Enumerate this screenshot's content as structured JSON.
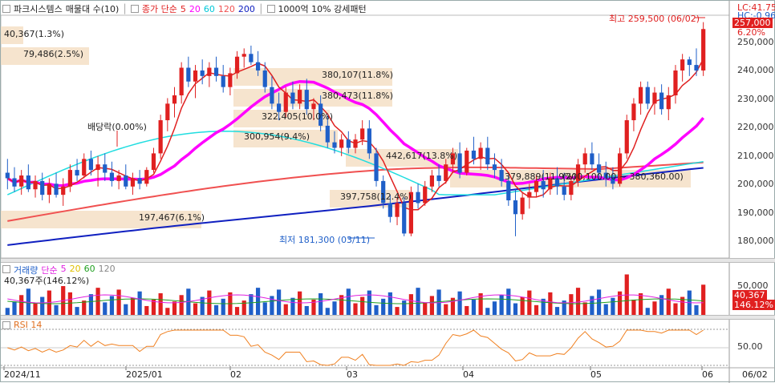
{
  "header": {
    "stock": "파크시스템스",
    "period": "매물대 수(10)",
    "ma_label": "종가 단순",
    "ma": [
      {
        "v": "5",
        "color": "#e02020"
      },
      {
        "v": "20",
        "color": "#ff00ff"
      },
      {
        "v": "60",
        "color": "#00c8d8"
      },
      {
        "v": "120",
        "color": "#f05050"
      },
      {
        "v": "200",
        "color": "#1020c0"
      }
    ],
    "pattern": "1000억 10% 강세패턴"
  },
  "price_axis": {
    "lc": "LC:41.75",
    "hc": "HC:-0.96",
    "current": "257,000",
    "change_pct": "6.20%",
    "ticks": [
      "250,000",
      "240,000",
      "230,000",
      "220,000",
      "210,000",
      "200,000",
      "190,000",
      "180,000"
    ]
  },
  "annotations": {
    "high": "최고 259,500 (06/02)",
    "low": "최저 181,300 (03/11)",
    "dividend": "배당락(0.00%)",
    "vp": [
      "40,367(1.3%)",
      "79,486(2.5%)",
      "380,107(11.8%)",
      "380,473(11.8%)",
      "322,405(10.0%)",
      "300,954(9.4%)",
      "442,617(13.8%)",
      "379,889(11.9%)",
      "(200,100.00 ~ 380,360.00)",
      "397,758(12.4%)",
      "197,467(6.1%)"
    ]
  },
  "volume": {
    "label": "거래량",
    "ma_label": "단순",
    "ma": [
      {
        "v": "5",
        "color": "#e020e0"
      },
      {
        "v": "20",
        "color": "#e0c000"
      },
      {
        "v": "60",
        "color": "#20a020"
      },
      {
        "v": "120",
        "color": "#888888"
      }
    ],
    "current": "40,367주(146.12%)",
    "axis_tick": "50,000",
    "tag_value": "40,367",
    "tag_pct": "146.12%"
  },
  "rsi": {
    "label": "RSI 14",
    "axis_tick": "50.00"
  },
  "x_axis": [
    "2024/11",
    "2025/01",
    "02",
    "03",
    "04",
    "05",
    "06",
    "06/02"
  ],
  "colors": {
    "up": "#e02020",
    "down": "#1f5fc8"
  },
  "chart_data": {
    "type": "candlestick",
    "ylim": [
      175000,
      262000
    ],
    "candles": [
      [
        205000,
        210000,
        199000,
        203000
      ],
      [
        203000,
        207000,
        198000,
        200000
      ],
      [
        200000,
        206000,
        197000,
        204000
      ],
      [
        204000,
        208000,
        198000,
        199000
      ],
      [
        199000,
        204000,
        196000,
        202000
      ],
      [
        202000,
        205000,
        195000,
        197000
      ],
      [
        197000,
        203000,
        194000,
        201000
      ],
      [
        201000,
        205000,
        196000,
        197000
      ],
      [
        197000,
        203000,
        193000,
        200000
      ],
      [
        200000,
        208000,
        198000,
        206000
      ],
      [
        206000,
        210000,
        202000,
        204000
      ],
      [
        204000,
        212000,
        203000,
        210000
      ],
      [
        210000,
        213000,
        204000,
        206000
      ],
      [
        206000,
        211000,
        200000,
        208000
      ],
      [
        208000,
        212000,
        202000,
        205000
      ],
      [
        205000,
        209000,
        200000,
        202000
      ],
      [
        202000,
        206000,
        199000,
        204000
      ],
      [
        204000,
        208000,
        199000,
        200000
      ],
      [
        200000,
        205000,
        197000,
        203000
      ],
      [
        203000,
        206000,
        199000,
        201000
      ],
      [
        201000,
        207000,
        200000,
        206000
      ],
      [
        206000,
        214000,
        205000,
        212000
      ],
      [
        212000,
        226000,
        210000,
        224000
      ],
      [
        224000,
        232000,
        220000,
        230000
      ],
      [
        230000,
        236000,
        225000,
        233000
      ],
      [
        233000,
        245000,
        230000,
        243000
      ],
      [
        243000,
        247000,
        236000,
        238000
      ],
      [
        238000,
        244000,
        232000,
        242000
      ],
      [
        242000,
        246000,
        237000,
        240000
      ],
      [
        240000,
        245000,
        236000,
        243000
      ],
      [
        243000,
        247000,
        238000,
        240000
      ],
      [
        240000,
        244000,
        234000,
        236000
      ],
      [
        236000,
        243000,
        233000,
        241000
      ],
      [
        241000,
        249000,
        239000,
        247000
      ],
      [
        247000,
        250000,
        243000,
        248000
      ],
      [
        248000,
        251000,
        244000,
        245000
      ],
      [
        245000,
        249000,
        240000,
        242000
      ],
      [
        242000,
        245000,
        234000,
        236000
      ],
      [
        236000,
        240000,
        228000,
        230000
      ],
      [
        230000,
        234000,
        224000,
        227000
      ],
      [
        227000,
        236000,
        225000,
        234000
      ],
      [
        234000,
        238000,
        228000,
        230000
      ],
      [
        230000,
        237000,
        228000,
        235000
      ],
      [
        235000,
        239000,
        226000,
        228000
      ],
      [
        228000,
        232000,
        224000,
        230000
      ],
      [
        230000,
        233000,
        220000,
        222000
      ],
      [
        222000,
        226000,
        214000,
        216000
      ],
      [
        216000,
        220000,
        212000,
        214000
      ],
      [
        214000,
        219000,
        211000,
        217000
      ],
      [
        217000,
        220000,
        212000,
        214000
      ],
      [
        214000,
        219000,
        212000,
        217000
      ],
      [
        217000,
        224000,
        215000,
        221000
      ],
      [
        221000,
        224000,
        210000,
        212000
      ],
      [
        212000,
        214000,
        200000,
        202000
      ],
      [
        202000,
        204000,
        192000,
        194000
      ],
      [
        194000,
        197000,
        187000,
        189000
      ],
      [
        189000,
        196000,
        186000,
        194000
      ],
      [
        194000,
        196000,
        182000,
        183000
      ],
      [
        183000,
        200000,
        182000,
        198000
      ],
      [
        198000,
        201000,
        192000,
        194000
      ],
      [
        194000,
        202000,
        193000,
        200000
      ],
      [
        200000,
        206000,
        198000,
        204000
      ],
      [
        204000,
        208000,
        200000,
        202000
      ],
      [
        202000,
        210000,
        201000,
        208000
      ],
      [
        208000,
        214000,
        205000,
        212000
      ],
      [
        212000,
        216000,
        203000,
        205000
      ],
      [
        205000,
        214000,
        204000,
        213000
      ],
      [
        213000,
        218000,
        208000,
        210000
      ],
      [
        210000,
        216000,
        206000,
        214000
      ],
      [
        214000,
        218000,
        206000,
        208000
      ],
      [
        208000,
        212000,
        203000,
        206000
      ],
      [
        206000,
        210000,
        200000,
        202000
      ],
      [
        202000,
        204000,
        193000,
        195000
      ],
      [
        195000,
        199000,
        182000,
        190000
      ],
      [
        190000,
        198000,
        188000,
        196000
      ],
      [
        196000,
        201000,
        192000,
        198000
      ],
      [
        198000,
        204000,
        196000,
        202000
      ],
      [
        202000,
        206000,
        196000,
        199000
      ],
      [
        199000,
        205000,
        197000,
        203000
      ],
      [
        203000,
        207000,
        197000,
        200000
      ],
      [
        200000,
        205000,
        195000,
        197000
      ],
      [
        197000,
        204000,
        195000,
        202000
      ],
      [
        202000,
        210000,
        200000,
        208000
      ],
      [
        208000,
        214000,
        205000,
        212000
      ],
      [
        212000,
        216000,
        206000,
        208000
      ],
      [
        208000,
        212000,
        203000,
        205000
      ],
      [
        205000,
        209000,
        200000,
        203000
      ],
      [
        203000,
        207000,
        199000,
        201000
      ],
      [
        201000,
        214000,
        200000,
        212000
      ],
      [
        212000,
        226000,
        210000,
        224000
      ],
      [
        224000,
        232000,
        220000,
        230000
      ],
      [
        230000,
        238000,
        226000,
        236000
      ],
      [
        236000,
        238000,
        228000,
        230000
      ],
      [
        230000,
        236000,
        226000,
        234000
      ],
      [
        234000,
        237000,
        226000,
        228000
      ],
      [
        228000,
        236000,
        224000,
        233000
      ],
      [
        233000,
        244000,
        230000,
        242000
      ],
      [
        242000,
        248000,
        238000,
        246000
      ],
      [
        246000,
        247000,
        240000,
        244000
      ],
      [
        244000,
        250000,
        240000,
        242000
      ],
      [
        242000,
        259500,
        240000,
        257000
      ]
    ]
  }
}
